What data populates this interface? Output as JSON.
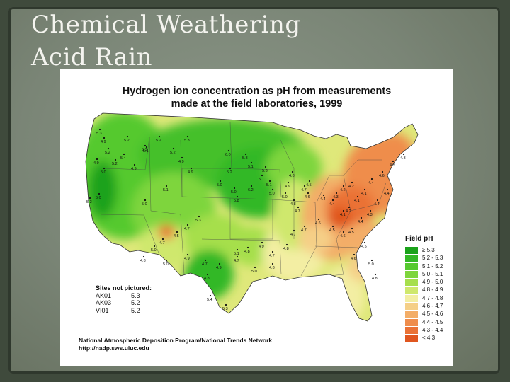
{
  "slide": {
    "title_line1": "Chemical Weathering",
    "title_line2": "Acid Rain"
  },
  "map": {
    "title_line1": "Hydrogen ion concentration as pH from measurements",
    "title_line2": "made at the field laboratories, 1999",
    "legend": {
      "title": "Field pH",
      "items": [
        {
          "label": "≥ 5.3",
          "color": "#1aa21a"
        },
        {
          "label": "5.2 - 5.3",
          "color": "#33b825"
        },
        {
          "label": "5.1 - 5.2",
          "color": "#55c92e"
        },
        {
          "label": "5.0 - 5.1",
          "color": "#7ed53c"
        },
        {
          "label": "4.9 - 5.0",
          "color": "#a6df4c"
        },
        {
          "label": "4.8 - 4.9",
          "color": "#cfe86d"
        },
        {
          "label": "4.7 - 4.8",
          "color": "#f3eea3"
        },
        {
          "label": "4.6 - 4.7",
          "color": "#f5cf87"
        },
        {
          "label": "4.5 - 4.6",
          "color": "#f3ad67"
        },
        {
          "label": "4.4 - 4.5",
          "color": "#ef8d4c"
        },
        {
          "label": "4.3 - 4.4",
          "color": "#ea7236"
        },
        {
          "label": "< 4.3",
          "color": "#e0561f"
        }
      ]
    },
    "sites_not_pictured": {
      "heading": "Sites not pictured:",
      "rows": [
        {
          "id": "AK01",
          "value": "5.3"
        },
        {
          "id": "AK03",
          "value": "5.2"
        },
        {
          "id": "VI01",
          "value": "5.2"
        }
      ]
    },
    "footer": {
      "org": "National Atmospheric Deposition Program/National Trends Network",
      "url": "http://nadp.sws.uiuc.edu"
    },
    "station_labels": [
      "5.3",
      "4.9",
      "5.2",
      "5.1",
      "5.2",
      "5.4",
      "4.9",
      "5.2",
      "5.0",
      "5.3",
      "5.2",
      "4.9",
      "5.0",
      "5.2",
      "5.3",
      "5.2",
      "4.9",
      "4.9",
      "5.1",
      "5.0",
      "6.0",
      "5.2",
      "5.3",
      "5.1",
      "5.3",
      "5.1",
      "5.1",
      "5.0",
      "6.2",
      "5.0",
      "5.0",
      "5.8",
      "4.8",
      "4.9",
      "5.0",
      "4.8",
      "4.7",
      "4.6",
      "4.7",
      "4.5",
      "4.4",
      "4.4",
      "4.3",
      "4.2",
      "4.2",
      "4.1",
      "4.2",
      "4.1",
      "4.1",
      "4.4",
      "4.6",
      "4.5",
      "4.3",
      "4.4",
      "4.4",
      "4.3",
      "4.4",
      "4.5",
      "4.6",
      "4.5",
      "4.6",
      "4.7",
      "4.7",
      "4.8",
      "4.7",
      "4.9",
      "4.8",
      "4.7",
      "4.5",
      "4.6",
      "5.0",
      "4.8",
      "5.4",
      "4.8",
      "5.3",
      "5.3",
      "4.7",
      "4.5",
      "4.7",
      "5.0",
      "4.8",
      "5.0",
      "4.9",
      "4.7",
      "4.9",
      "5.1",
      "5.0",
      "4.8"
    ]
  }
}
